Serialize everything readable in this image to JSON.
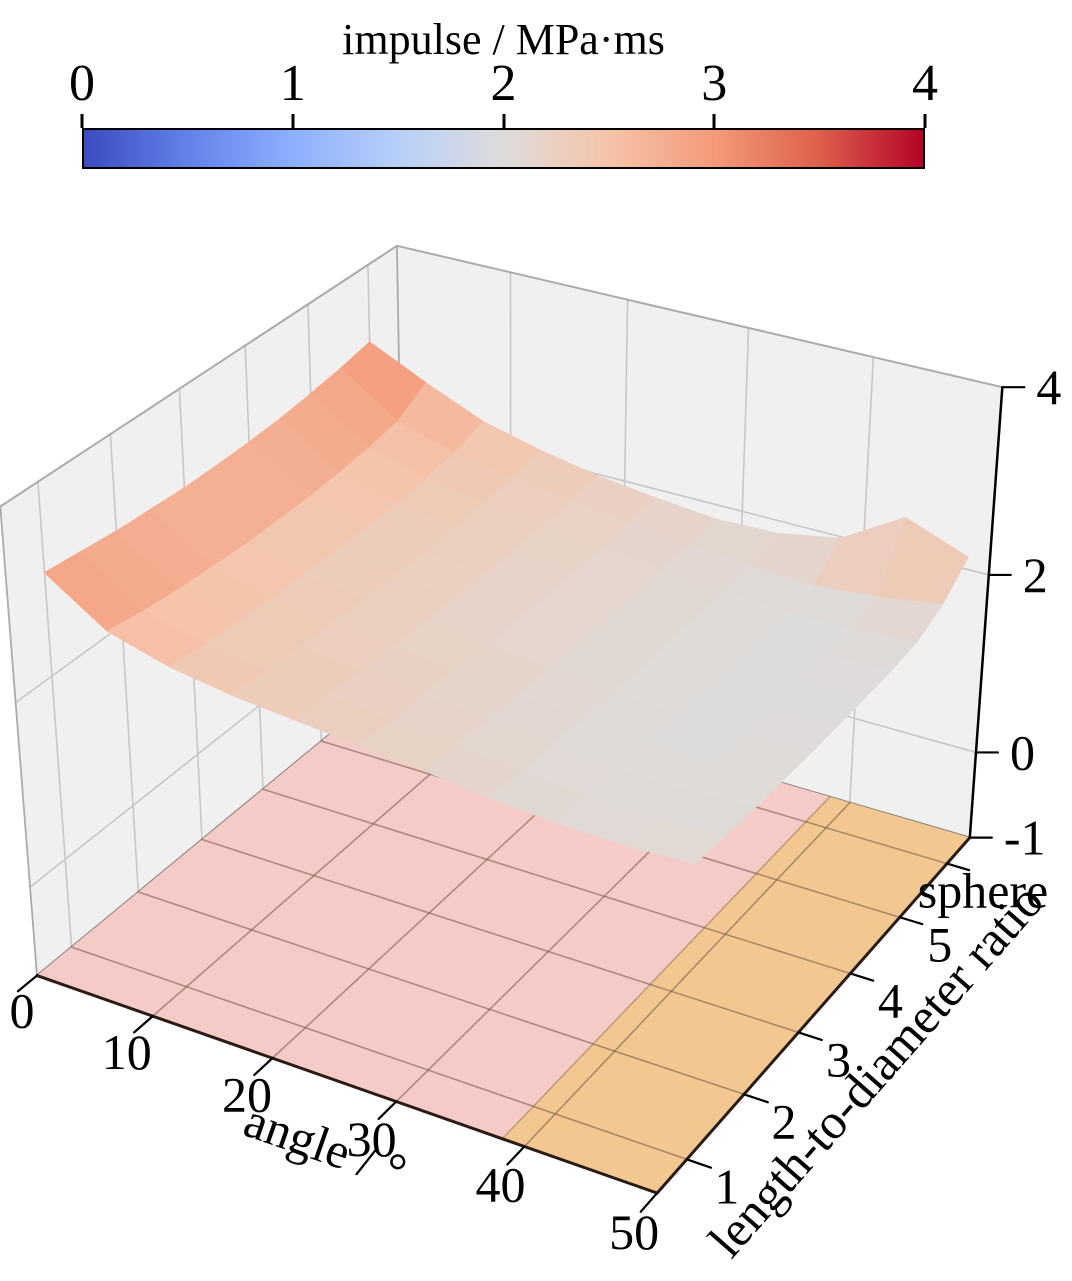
{
  "colorbar": {
    "title": "impulse / MPa·ms",
    "tick_labels": [
      "0",
      "1",
      "2",
      "3",
      "4"
    ],
    "colormap_name": "coolwarm",
    "gradient_stops": [
      [
        0.0,
        "#3B4CC0"
      ],
      [
        0.125,
        "#6282EA"
      ],
      [
        0.25,
        "#8DB0FE"
      ],
      [
        0.375,
        "#B8CFF9"
      ],
      [
        0.5,
        "#DDDCDB"
      ],
      [
        0.625,
        "#F5C4A9"
      ],
      [
        0.75,
        "#F49A7B"
      ],
      [
        0.875,
        "#DE604D"
      ],
      [
        1.0,
        "#B40426"
      ]
    ]
  },
  "axes3d": {
    "x": {
      "label": "angle / °",
      "range": [
        0,
        50
      ],
      "tick_values": [
        0,
        10,
        20,
        30,
        40,
        50
      ],
      "tick_labels": [
        "0",
        "10",
        "20",
        "30",
        "40",
        "50"
      ]
    },
    "y": {
      "label": "length-to-diameter ratio",
      "range": [
        0.5,
        6.5
      ],
      "tick_values": [
        1,
        2,
        3,
        4,
        5,
        6
      ],
      "tick_labels": [
        "1",
        "2",
        "3",
        "4",
        "5",
        "sphere"
      ]
    },
    "z": {
      "label": "",
      "range": [
        -1,
        4
      ],
      "tick_values": [
        4,
        2,
        0,
        -1
      ],
      "tick_labels": [
        "4",
        "2",
        "0",
        "-1"
      ]
    }
  },
  "floor_regions": [
    {
      "name": "floor-region-low-angle",
      "x_range": [
        0,
        38.3
      ],
      "color": "#F5CBC8"
    },
    {
      "name": "floor-region-high-angle",
      "x_range": [
        38.3,
        50
      ],
      "color": "#F3C890"
    }
  ],
  "style_colors": {
    "wall": "#F1F0F0",
    "wall_grid": "#C6C6CB",
    "wall_edge": "#ABABAB",
    "floor_wall_edge": "#8A8078",
    "floor_grid": "rgba(115,84,70,0.55)",
    "region_boundary": "rgba(140,100,70,0.5)",
    "spine": "#2A1B14",
    "z_axis": "#000000",
    "tick": "#000000"
  },
  "chart_data": {
    "type": "surface",
    "title": "impulse / MPa·ms",
    "xlabel": "angle / °",
    "ylabel": "length-to-diameter ratio",
    "zlabel": "impulse / MPa·ms",
    "colormap": "coolwarm",
    "color_range": [
      0,
      4
    ],
    "zlim": [
      -1,
      4
    ],
    "x": [
      0,
      5,
      10,
      15,
      20,
      25,
      30,
      35,
      40,
      45,
      50
    ],
    "y": [
      1,
      1.5,
      2,
      2.5,
      3,
      3.5,
      4,
      4.5,
      5,
      5.5,
      6
    ],
    "y_note": "y value 6 is the categorical tick 'sphere'",
    "z_grid": [
      [
        3.08,
        2.66,
        2.48,
        2.38,
        2.32,
        2.26,
        2.2,
        2.13,
        2.08,
        2.07,
        2.1
      ],
      [
        3.04,
        2.6,
        2.44,
        2.35,
        2.29,
        2.23,
        2.17,
        2.1,
        2.05,
        2.04,
        2.07
      ],
      [
        3.0,
        2.56,
        2.41,
        2.33,
        2.27,
        2.21,
        2.15,
        2.08,
        2.03,
        2.02,
        2.05
      ],
      [
        2.98,
        2.54,
        2.39,
        2.31,
        2.25,
        2.19,
        2.13,
        2.07,
        2.02,
        2.01,
        2.04
      ],
      [
        2.96,
        2.52,
        2.38,
        2.3,
        2.24,
        2.18,
        2.12,
        2.06,
        2.01,
        2.0,
        2.03
      ],
      [
        2.96,
        2.52,
        2.37,
        2.29,
        2.23,
        2.17,
        2.11,
        2.05,
        2.0,
        1.99,
        2.03
      ],
      [
        2.97,
        2.53,
        2.38,
        2.29,
        2.23,
        2.17,
        2.11,
        2.05,
        2.0,
        1.99,
        2.03
      ],
      [
        2.99,
        2.55,
        2.39,
        2.3,
        2.23,
        2.17,
        2.11,
        2.05,
        2.0,
        2.0,
        2.04
      ],
      [
        3.03,
        2.59,
        2.42,
        2.32,
        2.25,
        2.18,
        2.12,
        2.06,
        2.01,
        2.02,
        2.07
      ],
      [
        3.08,
        2.65,
        2.46,
        2.35,
        2.27,
        2.2,
        2.13,
        2.07,
        2.04,
        2.1,
        2.2
      ],
      [
        3.15,
        2.85,
        2.58,
        2.42,
        2.3,
        2.22,
        2.16,
        2.18,
        2.3,
        2.7,
        2.45
      ]
    ]
  }
}
